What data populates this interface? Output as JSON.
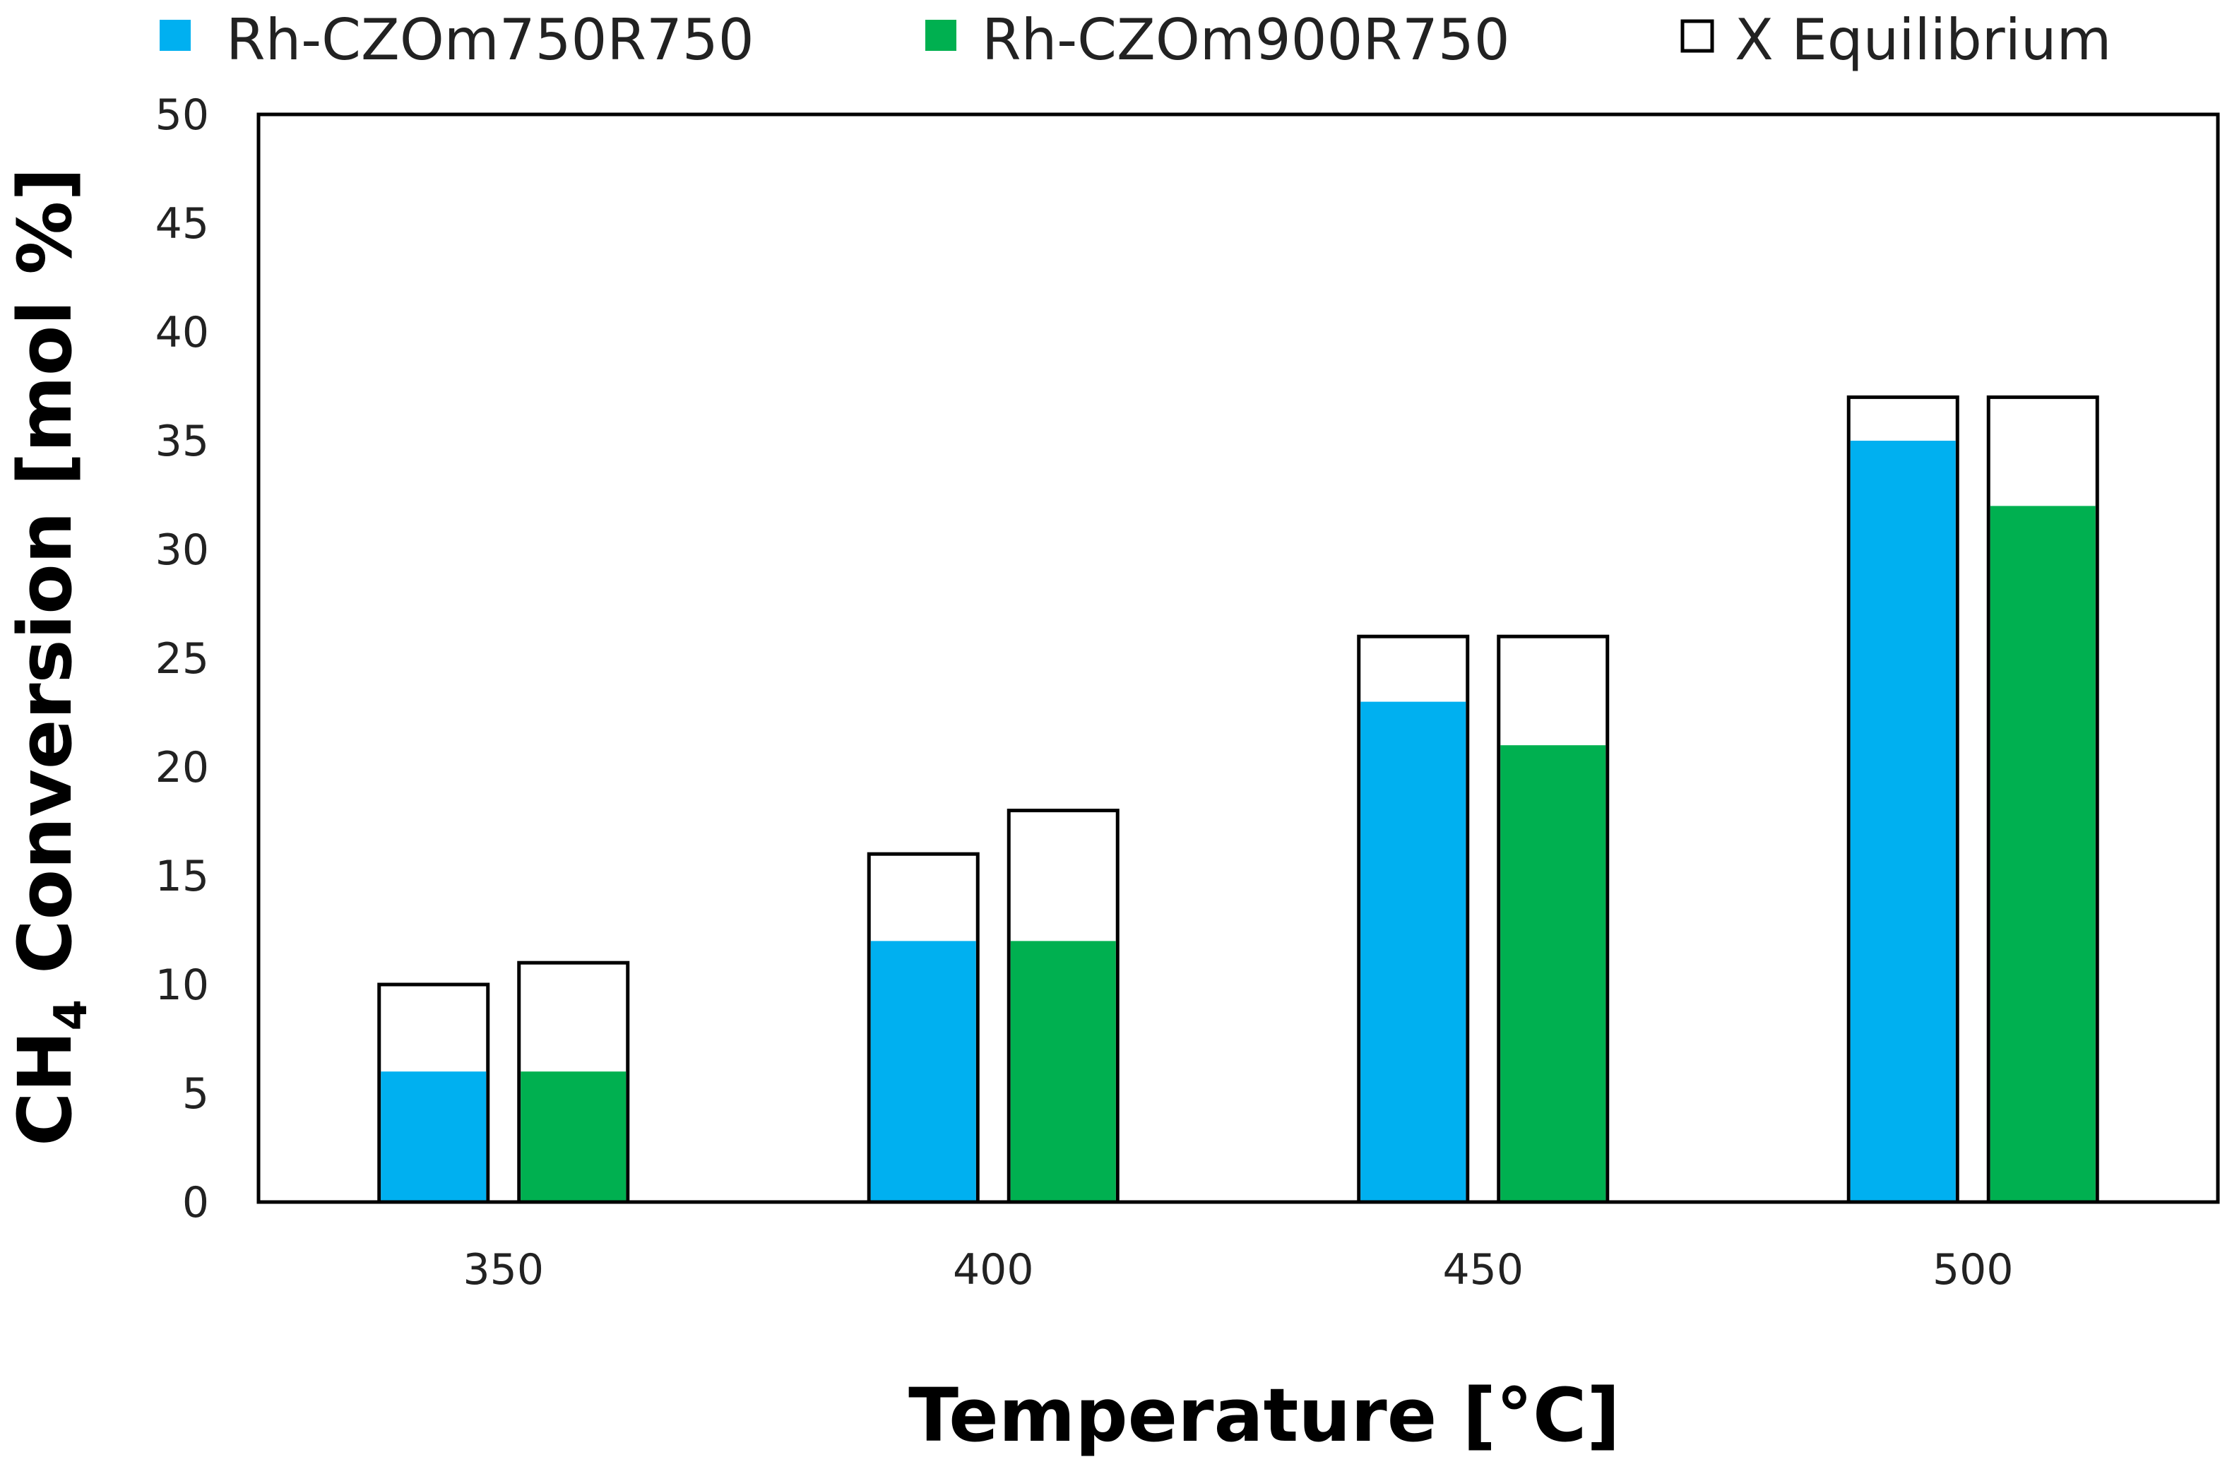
{
  "chart_data": {
    "type": "bar",
    "title": "",
    "xlabel": "Temperature [°C]",
    "ylabel": {
      "prefix": "CH",
      "subscript": "4",
      "suffix": " Conversion [mol %]"
    },
    "categories": [
      "350",
      "400",
      "450",
      "500"
    ],
    "ylim": [
      0,
      50
    ],
    "yticks": [
      "0",
      "5",
      "10",
      "15",
      "20",
      "25",
      "30",
      "35",
      "40",
      "45",
      "50"
    ],
    "legend_position": "top",
    "series": [
      {
        "name": "Rh-CZOm750R750",
        "color": "#00B0F0",
        "values": [
          6,
          12,
          23,
          35
        ],
        "equilibrium": [
          10,
          16,
          26,
          37
        ]
      },
      {
        "name": "Rh-CZOm900R750",
        "color": "#00B050",
        "values": [
          6,
          12,
          21,
          32
        ],
        "equilibrium": [
          11,
          18,
          26,
          37
        ]
      }
    ],
    "equilibrium_legend": "X Equilibrium"
  }
}
